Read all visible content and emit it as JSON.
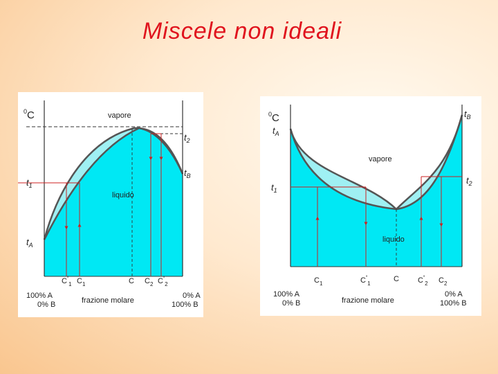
{
  "slide": {
    "title": "Miscele non ideali"
  },
  "colors": {
    "liquid_fill": "#00e8f4",
    "two_phase_fill": "#9ff0f3",
    "curve": "#555555",
    "tie_line": "#cc2222",
    "title": "#e0141e"
  },
  "left_diagram": {
    "unit_label": "C",
    "unit_degree": "0",
    "vapor_label": "vapore",
    "liquid_label": "liquido",
    "t2_label": "t",
    "t2_sub": "2",
    "tB_label": "t",
    "tB_sub": "B",
    "t1_label": "t",
    "t1_sub": "1",
    "tA_label": "t",
    "tA_sub": "A",
    "c1p_label": "C",
    "c1p_prime": "'",
    "c1p_sub": "1",
    "c1_label": "C",
    "c1_sub": "1",
    "c_label": "C",
    "c2_label": "C",
    "c2_sub": "2",
    "c2p_label": "C",
    "c2p_prime": "'",
    "c2p_sub": "2",
    "left_comp_line1": "100% A",
    "left_comp_line2": "0% B",
    "axis_label": "frazione molare",
    "right_comp_line1": "0% A",
    "right_comp_line2": "100% B"
  },
  "right_diagram": {
    "unit_label": "C",
    "unit_degree": "0",
    "tA_label": "t",
    "tA_sub": "A",
    "tB_label": "t",
    "tB_sub": "B",
    "vapor_label": "vapore",
    "t1_label": "t",
    "t1_sub": "1",
    "t2_label": "t",
    "t2_sub": "2",
    "liquid_label": "liquido",
    "c1_label": "C",
    "c1_sub": "1",
    "c1p_label": "C",
    "c1p_prime": "'",
    "c1p_sub": "1",
    "c_label": "C",
    "c2p_label": "C",
    "c2p_prime": "'",
    "c2p_sub": "2",
    "c2_label": "C",
    "c2_sub": "2",
    "left_comp_line1": "100% A",
    "left_comp_line2": "0% B",
    "axis_label": "frazione molare",
    "right_comp_line1": "0% A",
    "right_comp_line2": "100% B"
  }
}
